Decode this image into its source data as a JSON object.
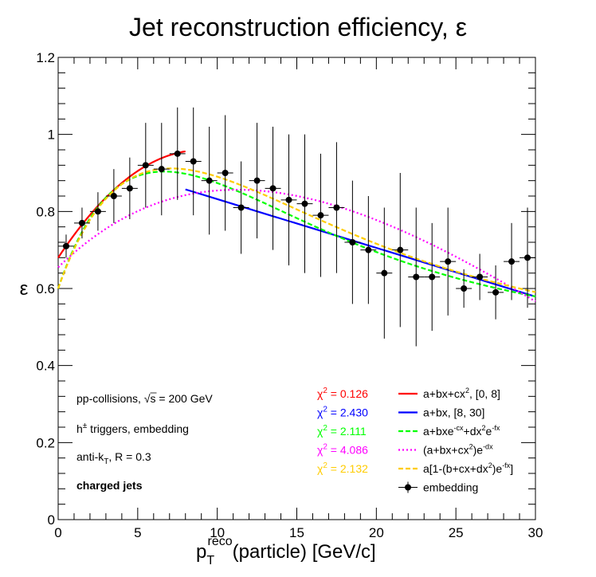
{
  "chart_data": {
    "type": "scatter",
    "title": "Jet reconstruction efficiency, ε",
    "xlabel": "(particle) [GeV/c]",
    "xlabel_main": "p",
    "xlabel_sup": "reco",
    "xlabel_sub": "T",
    "ylabel": "ε",
    "xlim": [
      0,
      30
    ],
    "ylim": [
      0,
      1.2
    ],
    "x_ticks": [
      0,
      5,
      10,
      15,
      20,
      25,
      30
    ],
    "y_ticks": [
      0,
      0.2,
      0.4,
      0.6,
      0.8,
      1,
      1.2
    ],
    "x_tick_labels": [
      "0",
      "5",
      "10",
      "15",
      "20",
      "25",
      "30"
    ],
    "y_tick_labels": [
      "0",
      "0.2",
      "0.4",
      "0.6",
      "0.8",
      "1",
      "1.2"
    ],
    "grid": false,
    "series": [
      {
        "name": "embedding",
        "color": "#000000",
        "x": [
          0.5,
          1.5,
          2.5,
          3.5,
          4.5,
          5.5,
          6.5,
          7.5,
          8.5,
          9.5,
          10.5,
          11.5,
          12.5,
          13.5,
          14.5,
          15.5,
          16.5,
          17.5,
          18.5,
          19.5,
          20.5,
          21.5,
          22.5,
          23.5,
          24.5,
          25.5,
          26.5,
          27.5,
          28.5,
          29.5
        ],
        "y": [
          0.71,
          0.77,
          0.8,
          0.84,
          0.86,
          0.92,
          0.91,
          0.95,
          0.93,
          0.88,
          0.9,
          0.81,
          0.88,
          0.86,
          0.83,
          0.82,
          0.79,
          0.81,
          0.72,
          0.7,
          0.64,
          0.7,
          0.63,
          0.63,
          0.67,
          0.6,
          0.63,
          0.59,
          0.67,
          0.68
        ],
        "yerr": [
          0.03,
          0.04,
          0.05,
          0.07,
          0.08,
          0.11,
          0.12,
          0.12,
          0.14,
          0.14,
          0.15,
          0.12,
          0.15,
          0.16,
          0.17,
          0.18,
          0.16,
          0.17,
          0.16,
          0.14,
          0.17,
          0.2,
          0.18,
          0.14,
          0.14,
          0.05,
          0.06,
          0.07,
          0.1,
          0.13
        ]
      }
    ],
    "fits": [
      {
        "formula": "a+bx+cx², [0, 8]",
        "formula_main": "a+bx+cx",
        "formula_sup": "2",
        "formula_tail": ", [0, 8]",
        "chi2": "0.126",
        "color": "#ff0000",
        "dash": "solid",
        "xrange": [
          0,
          8
        ]
      },
      {
        "formula": "a+bx, [8, 30]",
        "formula_main": "a+bx, [8, 30]",
        "formula_sup": "",
        "formula_tail": "",
        "chi2": "2.430",
        "color": "#0000ff",
        "dash": "solid",
        "xrange": [
          8,
          30
        ]
      },
      {
        "formula": "a+bxe⁻ᶜˣ+dx²e⁻ᶠˣ",
        "chi2": "2.111",
        "color": "#00ff00",
        "dash": "dashed",
        "xrange": [
          0,
          30
        ]
      },
      {
        "formula": "(a+bx+cx²)e⁻ᵈˣ",
        "chi2": "4.086",
        "color": "#ff00ff",
        "dash": "dotted",
        "xrange": [
          0,
          30
        ]
      },
      {
        "formula": "a[1-(b+cx+dx²)e⁻ᶠˣ]",
        "chi2": "2.132",
        "color": "#ffcc00",
        "dash": "dashed",
        "xrange": [
          0,
          30
        ]
      }
    ],
    "legend_label_embedding": "embedding",
    "legend_position": "bottom-right",
    "chi_prefix": "χ",
    "chi_sup": "2",
    "annotations": {
      "collisions": "pp-collisions, √s = 200 GeV",
      "collisions_main": "pp-collisions, ",
      "collisions_s": "s = 200 GeV",
      "triggers_main": "h",
      "triggers_sup": "±",
      "triggers_tail": " triggers, embedding",
      "algo_main": "anti-k",
      "algo_sub": "T",
      "algo_tail": ", R = 0.3",
      "jets": "charged jets"
    }
  }
}
